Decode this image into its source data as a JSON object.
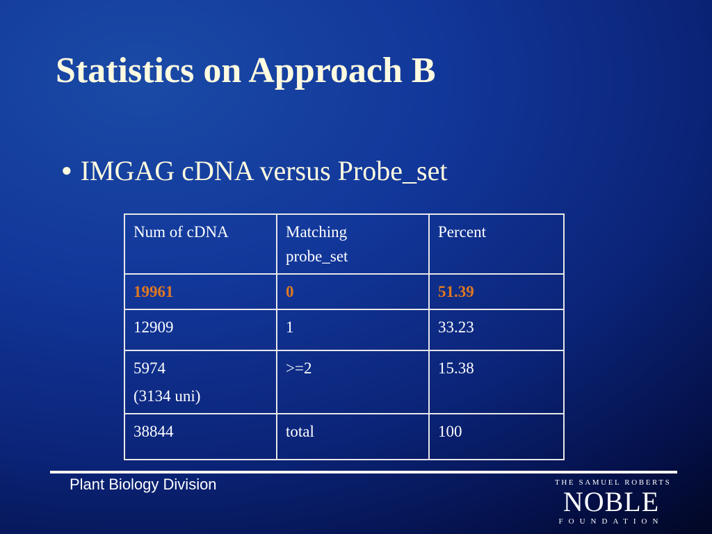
{
  "slide": {
    "title": "Statistics on Approach B",
    "bullet_symbol": "●",
    "bullet_text": "IMGAG cDNA versus Probe_set"
  },
  "table": {
    "headers": [
      "Num of cDNA",
      [
        "Matching",
        "probe_set"
      ],
      "Percent"
    ],
    "rows": [
      [
        "19961",
        "0",
        "51.39"
      ],
      [
        "12909",
        "1",
        "33.23"
      ],
      [
        [
          "5974",
          "(3134 uni)"
        ],
        ">=2",
        "15.38"
      ],
      [
        "38844",
        "total",
        "100"
      ]
    ],
    "highlight_color": "#e07820"
  },
  "footer": {
    "division": "Plant Biology Division",
    "logo": {
      "top": "THE SAMUEL ROBERTS",
      "main": "NOBLE",
      "bottom": "FOUNDATION"
    }
  },
  "colors": {
    "background": "#12379a",
    "title": "#fffbe0",
    "text": "#ffffff"
  }
}
